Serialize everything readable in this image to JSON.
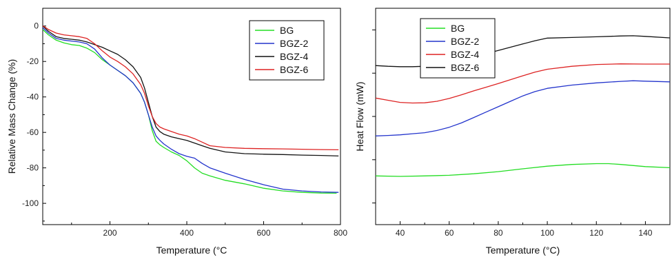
{
  "chart_data": [
    {
      "type": "line",
      "xlabel": "Temperature (°C",
      "ylabel": "Relative Mass Change (%)",
      "xlim": [
        25,
        800
      ],
      "ylim": [
        -112,
        10
      ],
      "xticks": [
        200,
        400,
        600,
        800
      ],
      "yticks": [
        0,
        -20,
        -40,
        -60,
        -80,
        -100
      ],
      "legend_position": "top-right",
      "grid": false,
      "series": [
        {
          "name": "BG",
          "color": "#22dd22",
          "x": [
            25,
            30,
            40,
            60,
            80,
            100,
            120,
            140,
            160,
            180,
            200,
            220,
            240,
            260,
            280,
            290,
            300,
            310,
            320,
            330,
            340,
            360,
            380,
            400,
            420,
            440,
            460,
            500,
            550,
            600,
            650,
            700,
            750,
            790
          ],
          "y": [
            -2,
            -3,
            -5,
            -8,
            -9.5,
            -10.5,
            -11,
            -12.5,
            -15,
            -19,
            -22,
            -25,
            -28,
            -32,
            -38,
            -43,
            -50,
            -59,
            -65,
            -67,
            -68.5,
            -71,
            -73,
            -76,
            -80,
            -83,
            -84.5,
            -87,
            -89,
            -91.5,
            -93,
            -93.8,
            -94.2,
            -94.3
          ]
        },
        {
          "name": "BGZ-2",
          "color": "#2233cc",
          "x": [
            25,
            30,
            40,
            60,
            80,
            100,
            120,
            140,
            160,
            180,
            200,
            220,
            240,
            260,
            280,
            290,
            300,
            310,
            320,
            330,
            340,
            360,
            380,
            400,
            420,
            440,
            460,
            500,
            550,
            600,
            650,
            700,
            750,
            795
          ],
          "y": [
            -1,
            -2,
            -4,
            -7,
            -8,
            -8.5,
            -9,
            -10,
            -13,
            -18,
            -22,
            -25,
            -28,
            -32,
            -38,
            -43,
            -50,
            -57,
            -62,
            -64.5,
            -66.5,
            -69.5,
            -72,
            -73.5,
            -74.5,
            -77.5,
            -80,
            -83,
            -86.5,
            -89.5,
            -92,
            -93,
            -93.6,
            -93.8
          ]
        },
        {
          "name": "BGZ-4",
          "color": "#111111",
          "x": [
            25,
            30,
            40,
            60,
            80,
            100,
            120,
            140,
            160,
            180,
            200,
            220,
            240,
            260,
            280,
            290,
            300,
            310,
            320,
            330,
            340,
            360,
            380,
            400,
            420,
            440,
            460,
            500,
            550,
            600,
            650,
            700,
            750,
            795
          ],
          "y": [
            0,
            -1,
            -3,
            -6,
            -7,
            -7.5,
            -8,
            -9,
            -10.5,
            -12,
            -14,
            -16,
            -19,
            -23,
            -29,
            -35,
            -43,
            -51,
            -57,
            -59.5,
            -61,
            -62.5,
            -63.5,
            -64.5,
            -66,
            -67.5,
            -69,
            -71,
            -72,
            -72.3,
            -72.5,
            -72.8,
            -73,
            -73.3
          ]
        },
        {
          "name": "BGZ-6",
          "color": "#dd2222",
          "x": [
            25,
            30,
            40,
            60,
            80,
            100,
            120,
            140,
            160,
            180,
            200,
            220,
            240,
            260,
            280,
            290,
            300,
            310,
            320,
            330,
            340,
            360,
            380,
            400,
            420,
            440,
            460,
            500,
            550,
            600,
            650,
            700,
            750,
            795
          ],
          "y": [
            0,
            -0.5,
            -2,
            -4,
            -5,
            -5.5,
            -6,
            -7,
            -10,
            -14,
            -17.5,
            -20,
            -23,
            -27,
            -33,
            -38,
            -45,
            -51,
            -55,
            -57,
            -58,
            -59.5,
            -61,
            -62,
            -63.5,
            -65.5,
            -67.5,
            -68.5,
            -69,
            -69.2,
            -69.3,
            -69.5,
            -69.7,
            -69.8
          ]
        }
      ]
    },
    {
      "type": "line",
      "xlabel": "Temperature (°C)",
      "ylabel": "Heat Flow (mW)",
      "xlim": [
        30,
        150
      ],
      "ylim": [
        0,
        100
      ],
      "xticks": [
        40,
        60,
        80,
        100,
        120,
        140
      ],
      "yticks_unlabeled": [
        10,
        30,
        50,
        70,
        90
      ],
      "legend_position": "top-left",
      "grid": false,
      "series": [
        {
          "name": "BG",
          "color": "#22dd22",
          "x": [
            30,
            40,
            50,
            60,
            70,
            80,
            90,
            100,
            110,
            120,
            125,
            130,
            140,
            150
          ],
          "y": [
            22.5,
            22.3,
            22.5,
            22.8,
            23.5,
            24.5,
            25.8,
            27,
            27.8,
            28.2,
            28.2,
            27.8,
            26.8,
            26.3
          ]
        },
        {
          "name": "BGZ-2",
          "color": "#2233cc",
          "x": [
            30,
            35,
            40,
            45,
            50,
            55,
            60,
            65,
            70,
            75,
            80,
            85,
            90,
            95,
            100,
            110,
            120,
            130,
            135,
            140,
            150
          ],
          "y": [
            41,
            41.2,
            41.5,
            42,
            42.5,
            43.5,
            45,
            47,
            49.5,
            52,
            54.5,
            57,
            59.5,
            61.5,
            63,
            64.5,
            65.5,
            66.2,
            66.5,
            66.3,
            66
          ]
        },
        {
          "name": "BGZ-4",
          "color": "#dd2222",
          "x": [
            30,
            35,
            40,
            45,
            50,
            55,
            60,
            65,
            70,
            75,
            80,
            85,
            90,
            95,
            100,
            110,
            120,
            130,
            140,
            150
          ],
          "y": [
            58.5,
            57.5,
            56.5,
            56.2,
            56.3,
            57,
            58.3,
            60,
            61.8,
            63.5,
            65.2,
            67,
            68.8,
            70.5,
            71.8,
            73.2,
            74,
            74.3,
            74.2,
            74.2
          ]
        },
        {
          "name": "BGZ-6",
          "color": "#111111",
          "x": [
            30,
            35,
            40,
            45,
            50,
            55,
            60,
            65,
            70,
            75,
            80,
            85,
            90,
            95,
            100,
            110,
            120,
            130,
            135,
            140,
            150
          ],
          "y": [
            73.5,
            73.2,
            73,
            73,
            73.2,
            73.8,
            74.8,
            76,
            77.5,
            79,
            80.5,
            82,
            83.5,
            85,
            86.2,
            86.5,
            86.8,
            87.2,
            87.3,
            87,
            86.3
          ]
        }
      ]
    }
  ]
}
